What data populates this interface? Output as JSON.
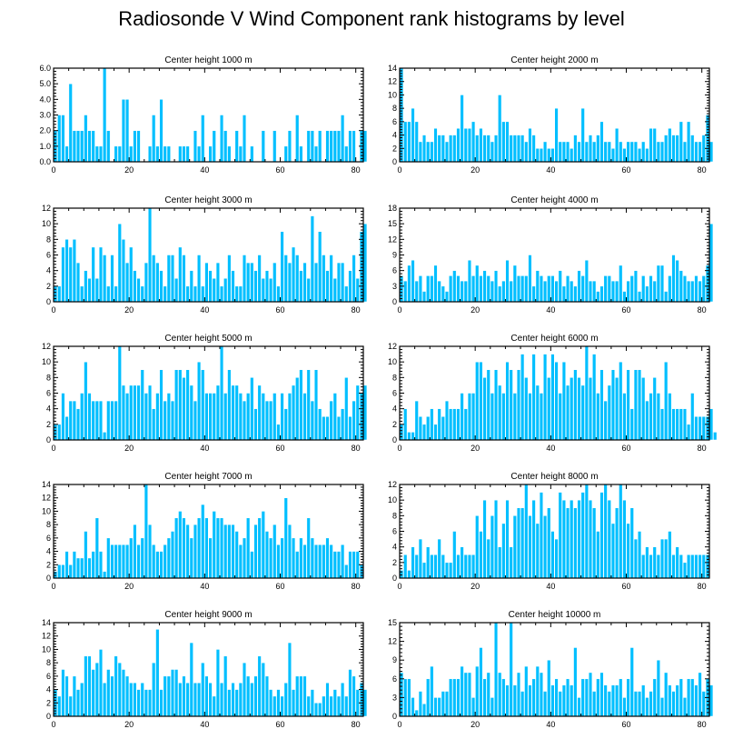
{
  "title": "Radiosonde V Wind Component rank histograms by level",
  "colors": {
    "bar": "#00bfff",
    "bar_edge": "#ffffff",
    "axis": "#000000"
  },
  "chart_data": [
    {
      "type": "bar",
      "title": "Center height 1000 m",
      "xlim": [
        0,
        82
      ],
      "ylim": [
        0,
        6
      ],
      "xticks": [
        0,
        20,
        40,
        60,
        80
      ],
      "yticks": [
        0,
        1,
        2,
        3,
        4,
        5,
        6
      ],
      "ytick_labels": [
        "0.0",
        "1.0",
        "2.0",
        "3.0",
        "4.0",
        "5.0",
        "6.0"
      ],
      "values": [
        2,
        3,
        3,
        1,
        5,
        2,
        2,
        2,
        3,
        2,
        2,
        1,
        1,
        6,
        2,
        0,
        1,
        1,
        4,
        4,
        1,
        2,
        2,
        0,
        0,
        1,
        3,
        1,
        4,
        1,
        1,
        0,
        0,
        1,
        1,
        1,
        0,
        2,
        1,
        3,
        0,
        1,
        2,
        0,
        3,
        2,
        1,
        0,
        2,
        1,
        3,
        0,
        1,
        0,
        0,
        2,
        0,
        0,
        2,
        0,
        0,
        1,
        2,
        0,
        3,
        1,
        0,
        2,
        2,
        1,
        2,
        0,
        2,
        2,
        2,
        2,
        3,
        1,
        2,
        2,
        0,
        2,
        2
      ]
    },
    {
      "type": "bar",
      "title": "Center height 2000 m",
      "xlim": [
        0,
        82
      ],
      "ylim": [
        0,
        14
      ],
      "xticks": [
        0,
        20,
        40,
        60,
        80
      ],
      "yticks": [
        0,
        2,
        4,
        6,
        8,
        10,
        12,
        14
      ],
      "ytick_labels": [
        "0",
        "2",
        "4",
        "6",
        "8",
        "10",
        "12",
        "14"
      ],
      "values": [
        14,
        6,
        6,
        8,
        6,
        3,
        4,
        3,
        3,
        5,
        4,
        4,
        3,
        4,
        4,
        5,
        10,
        5,
        5,
        6,
        4,
        5,
        4,
        4,
        3,
        4,
        10,
        6,
        6,
        4,
        4,
        4,
        4,
        3,
        5,
        4,
        2,
        2,
        3,
        2,
        2,
        8,
        3,
        3,
        3,
        2,
        4,
        3,
        8,
        3,
        4,
        3,
        4,
        6,
        3,
        3,
        2,
        5,
        3,
        2,
        3,
        3,
        3,
        2,
        3,
        2,
        5,
        5,
        3,
        3,
        4,
        5,
        4,
        4,
        6,
        3,
        6,
        4,
        3,
        3,
        4,
        7,
        3
      ]
    },
    {
      "type": "bar",
      "title": "Center height 3000 m",
      "xlim": [
        0,
        82
      ],
      "ylim": [
        0,
        12
      ],
      "xticks": [
        0,
        20,
        40,
        60,
        80
      ],
      "yticks": [
        0,
        2,
        4,
        6,
        8,
        10,
        12
      ],
      "ytick_labels": [
        "0",
        "2",
        "4",
        "6",
        "8",
        "10",
        "12"
      ],
      "values": [
        2,
        2,
        7,
        8,
        7,
        8,
        5,
        2,
        4,
        3,
        7,
        3,
        7,
        6,
        2,
        6,
        2,
        10,
        8,
        5,
        7,
        4,
        3,
        2,
        5,
        12,
        6,
        5,
        4,
        2,
        6,
        6,
        3,
        7,
        6,
        2,
        4,
        2,
        6,
        2,
        5,
        4,
        3,
        5,
        2,
        3,
        6,
        4,
        2,
        2,
        6,
        5,
        5,
        4,
        6,
        3,
        4,
        3,
        5,
        2,
        9,
        6,
        5,
        7,
        6,
        4,
        5,
        3,
        11,
        5,
        9,
        6,
        4,
        6,
        3,
        5,
        5,
        2,
        4,
        6,
        3,
        9,
        10
      ]
    },
    {
      "type": "bar",
      "title": "Center height 4000 m",
      "xlim": [
        0,
        82
      ],
      "ylim": [
        0,
        18
      ],
      "xticks": [
        0,
        20,
        40,
        60,
        80
      ],
      "yticks": [
        0,
        3,
        6,
        9,
        12,
        15,
        18
      ],
      "ytick_labels": [
        "0",
        "3",
        "6",
        "9",
        "12",
        "15",
        "18"
      ],
      "values": [
        5,
        4,
        7,
        8,
        4,
        5,
        2,
        5,
        5,
        7,
        4,
        3,
        2,
        5,
        6,
        5,
        4,
        4,
        8,
        5,
        7,
        5,
        6,
        5,
        4,
        6,
        3,
        4,
        8,
        4,
        7,
        5,
        5,
        5,
        9,
        3,
        6,
        5,
        4,
        5,
        5,
        4,
        6,
        3,
        5,
        4,
        3,
        6,
        5,
        8,
        4,
        4,
        2,
        3,
        5,
        5,
        4,
        4,
        7,
        2,
        4,
        5,
        6,
        2,
        5,
        3,
        5,
        4,
        7,
        7,
        2,
        5,
        9,
        8,
        6,
        5,
        4,
        4,
        5,
        4,
        5,
        7,
        15
      ]
    },
    {
      "type": "bar",
      "title": "Center height 5000 m",
      "xlim": [
        0,
        82
      ],
      "ylim": [
        0,
        12
      ],
      "xticks": [
        0,
        20,
        40,
        60,
        80
      ],
      "yticks": [
        0,
        2,
        4,
        6,
        8,
        10,
        12
      ],
      "ytick_labels": [
        "0",
        "2",
        "4",
        "6",
        "8",
        "10",
        "12"
      ],
      "values": [
        2,
        2,
        6,
        3,
        5,
        5,
        4,
        6,
        10,
        6,
        5,
        5,
        5,
        1,
        5,
        5,
        5,
        12,
        7,
        6,
        7,
        7,
        7,
        9,
        6,
        7,
        4,
        6,
        9,
        5,
        6,
        5,
        9,
        9,
        8,
        9,
        7,
        5,
        10,
        9,
        6,
        6,
        6,
        7,
        12,
        6,
        9,
        7,
        7,
        6,
        5,
        6,
        8,
        4,
        7,
        6,
        5,
        5,
        6,
        2,
        6,
        4,
        6,
        7,
        8,
        9,
        6,
        9,
        5,
        9,
        4,
        3,
        3,
        5,
        6,
        3,
        4,
        8,
        3,
        5,
        7,
        6,
        7
      ]
    },
    {
      "type": "bar",
      "title": "Center height 6000 m",
      "xlim": [
        0,
        82
      ],
      "ylim": [
        0,
        12
      ],
      "xticks": [
        0,
        20,
        40,
        60,
        80
      ],
      "yticks": [
        0,
        2,
        4,
        6,
        8,
        10,
        12
      ],
      "ytick_labels": [
        "0",
        "2",
        "4",
        "6",
        "8",
        "10",
        "12"
      ],
      "values": [
        2,
        4,
        1,
        1,
        5,
        3,
        2,
        3,
        4,
        2,
        4,
        3,
        5,
        4,
        4,
        4,
        6,
        4,
        6,
        6,
        10,
        10,
        8,
        9,
        6,
        9,
        7,
        6,
        10,
        9,
        6,
        9,
        11,
        8,
        6,
        11,
        7,
        6,
        11,
        8,
        11,
        10,
        6,
        10,
        7,
        8,
        9,
        8,
        7,
        12,
        8,
        11,
        6,
        9,
        5,
        7,
        9,
        8,
        10,
        6,
        9,
        4,
        9,
        9,
        8,
        5,
        6,
        8,
        6,
        4,
        10,
        6,
        4,
        4,
        4,
        4,
        2,
        6,
        3,
        3,
        3,
        3,
        4,
        1
      ]
    },
    {
      "type": "bar",
      "title": "Center height 7000 m",
      "xlim": [
        0,
        82
      ],
      "ylim": [
        0,
        14
      ],
      "xticks": [
        0,
        20,
        40,
        60,
        80
      ],
      "yticks": [
        0,
        2,
        4,
        6,
        8,
        10,
        12,
        14
      ],
      "ytick_labels": [
        "0",
        "2",
        "4",
        "6",
        "8",
        "10",
        "12",
        "14"
      ],
      "values": [
        1,
        2,
        2,
        4,
        2,
        4,
        3,
        3,
        7,
        3,
        4,
        9,
        4,
        1,
        6,
        5,
        5,
        5,
        5,
        5,
        6,
        8,
        5,
        6,
        14,
        8,
        5,
        4,
        4,
        5,
        6,
        7,
        9,
        10,
        9,
        8,
        6,
        8,
        9,
        11,
        9,
        6,
        10,
        9,
        9,
        8,
        8,
        8,
        7,
        5,
        6,
        9,
        4,
        8,
        9,
        10,
        7,
        6,
        8,
        5,
        6,
        12,
        8,
        6,
        4,
        6,
        5,
        9,
        6,
        5,
        5,
        5,
        6,
        5,
        4,
        4,
        5,
        2,
        4,
        4,
        4,
        2
      ]
    },
    {
      "type": "bar",
      "title": "Center height 8000 m",
      "xlim": [
        0,
        82
      ],
      "ylim": [
        0,
        12
      ],
      "xticks": [
        0,
        20,
        40,
        60,
        80
      ],
      "yticks": [
        0,
        2,
        4,
        6,
        8,
        10,
        12
      ],
      "ytick_labels": [
        "0",
        "2",
        "4",
        "6",
        "8",
        "10",
        "12"
      ],
      "values": [
        1,
        3,
        1,
        4,
        3,
        5,
        2,
        4,
        3,
        3,
        5,
        3,
        2,
        2,
        6,
        3,
        4,
        3,
        3,
        3,
        8,
        6,
        10,
        5,
        8,
        10,
        4,
        7,
        10,
        4,
        8,
        9,
        9,
        12,
        8,
        10,
        7,
        11,
        8,
        9,
        6,
        5,
        11,
        10,
        9,
        10,
        9,
        10,
        11,
        12,
        10,
        9,
        6,
        11,
        12,
        10,
        7,
        9,
        12,
        10,
        7,
        9,
        5,
        6,
        3,
        4,
        3,
        4,
        3,
        5,
        5,
        6,
        3,
        4,
        3,
        2,
        3,
        3,
        3,
        3,
        3,
        3
      ]
    },
    {
      "type": "bar",
      "title": "Center height 9000 m",
      "xlim": [
        0,
        82
      ],
      "ylim": [
        0,
        14
      ],
      "xticks": [
        0,
        20,
        40,
        60,
        80
      ],
      "yticks": [
        0,
        2,
        4,
        6,
        8,
        10,
        12,
        14
      ],
      "ytick_labels": [
        "0",
        "2",
        "4",
        "6",
        "8",
        "10",
        "12",
        "14"
      ],
      "values": [
        4,
        3,
        7,
        6,
        3,
        6,
        4,
        5,
        9,
        9,
        7,
        8,
        10,
        5,
        7,
        6,
        9,
        8,
        7,
        6,
        5,
        5,
        4,
        5,
        4,
        4,
        8,
        13,
        4,
        6,
        6,
        7,
        7,
        5,
        6,
        5,
        11,
        5,
        5,
        8,
        6,
        5,
        3,
        10,
        5,
        9,
        4,
        5,
        4,
        5,
        8,
        6,
        5,
        6,
        9,
        8,
        6,
        4,
        3,
        4,
        3,
        5,
        11,
        4,
        6,
        6,
        6,
        3,
        4,
        2,
        2,
        3,
        5,
        3,
        4,
        3,
        5,
        3,
        7,
        6,
        4,
        5,
        4
      ]
    },
    {
      "type": "bar",
      "title": "Center height 10000 m",
      "xlim": [
        0,
        82
      ],
      "ylim": [
        0,
        15
      ],
      "xticks": [
        0,
        20,
        40,
        60,
        80
      ],
      "yticks": [
        0,
        3,
        6,
        9,
        12,
        15
      ],
      "ytick_labels": [
        "0",
        "3",
        "6",
        "9",
        "12",
        "15"
      ],
      "values": [
        7,
        6,
        6,
        3,
        1,
        4,
        2,
        6,
        8,
        3,
        3,
        4,
        4,
        6,
        6,
        6,
        8,
        7,
        7,
        3,
        8,
        11,
        6,
        7,
        3,
        15,
        7,
        6,
        5,
        15,
        5,
        7,
        4,
        8,
        5,
        6,
        8,
        7,
        4,
        9,
        5,
        6,
        4,
        5,
        6,
        5,
        11,
        3,
        6,
        6,
        7,
        4,
        6,
        7,
        5,
        4,
        5,
        5,
        6,
        3,
        6,
        11,
        4,
        4,
        5,
        3,
        4,
        6,
        9,
        3,
        7,
        5,
        4,
        5,
        6,
        3,
        6,
        6,
        5,
        7,
        4,
        6,
        5
      ]
    }
  ]
}
